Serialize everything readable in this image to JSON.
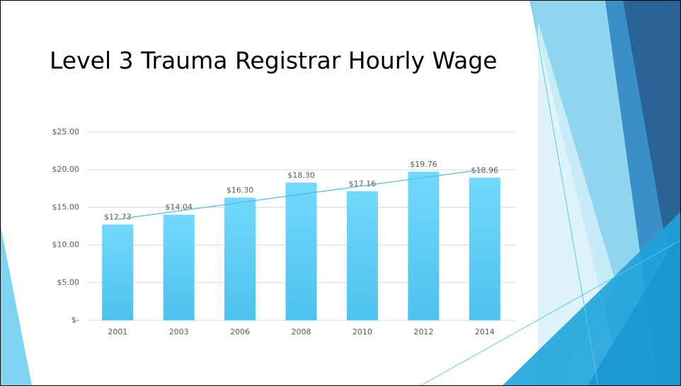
{
  "chart_data": {
    "type": "bar",
    "title": "Level 3 Trauma Registrar Hourly Wage",
    "categories": [
      "2001",
      "2003",
      "2006",
      "2008",
      "2010",
      "2012",
      "2014"
    ],
    "values": [
      12.73,
      14.04,
      16.3,
      18.3,
      17.16,
      19.76,
      18.96
    ],
    "value_labels": [
      "$12.73",
      "$14.04",
      "$16.30",
      "$18.30",
      "$17.16",
      "$19.76",
      "$18.96"
    ],
    "color": "#5fcdf6",
    "ylim": [
      0,
      25
    ],
    "yticks": [
      {
        "value": 0,
        "label": "$-"
      },
      {
        "value": 5,
        "label": "$5.00"
      },
      {
        "value": 10,
        "label": "$10.00"
      },
      {
        "value": 15,
        "label": "$15.00"
      },
      {
        "value": 20,
        "label": "$20.00"
      },
      {
        "value": 25,
        "label": "$25.00"
      }
    ],
    "grid": true,
    "trendline": true,
    "trendline_color": "#4bbfe6"
  }
}
